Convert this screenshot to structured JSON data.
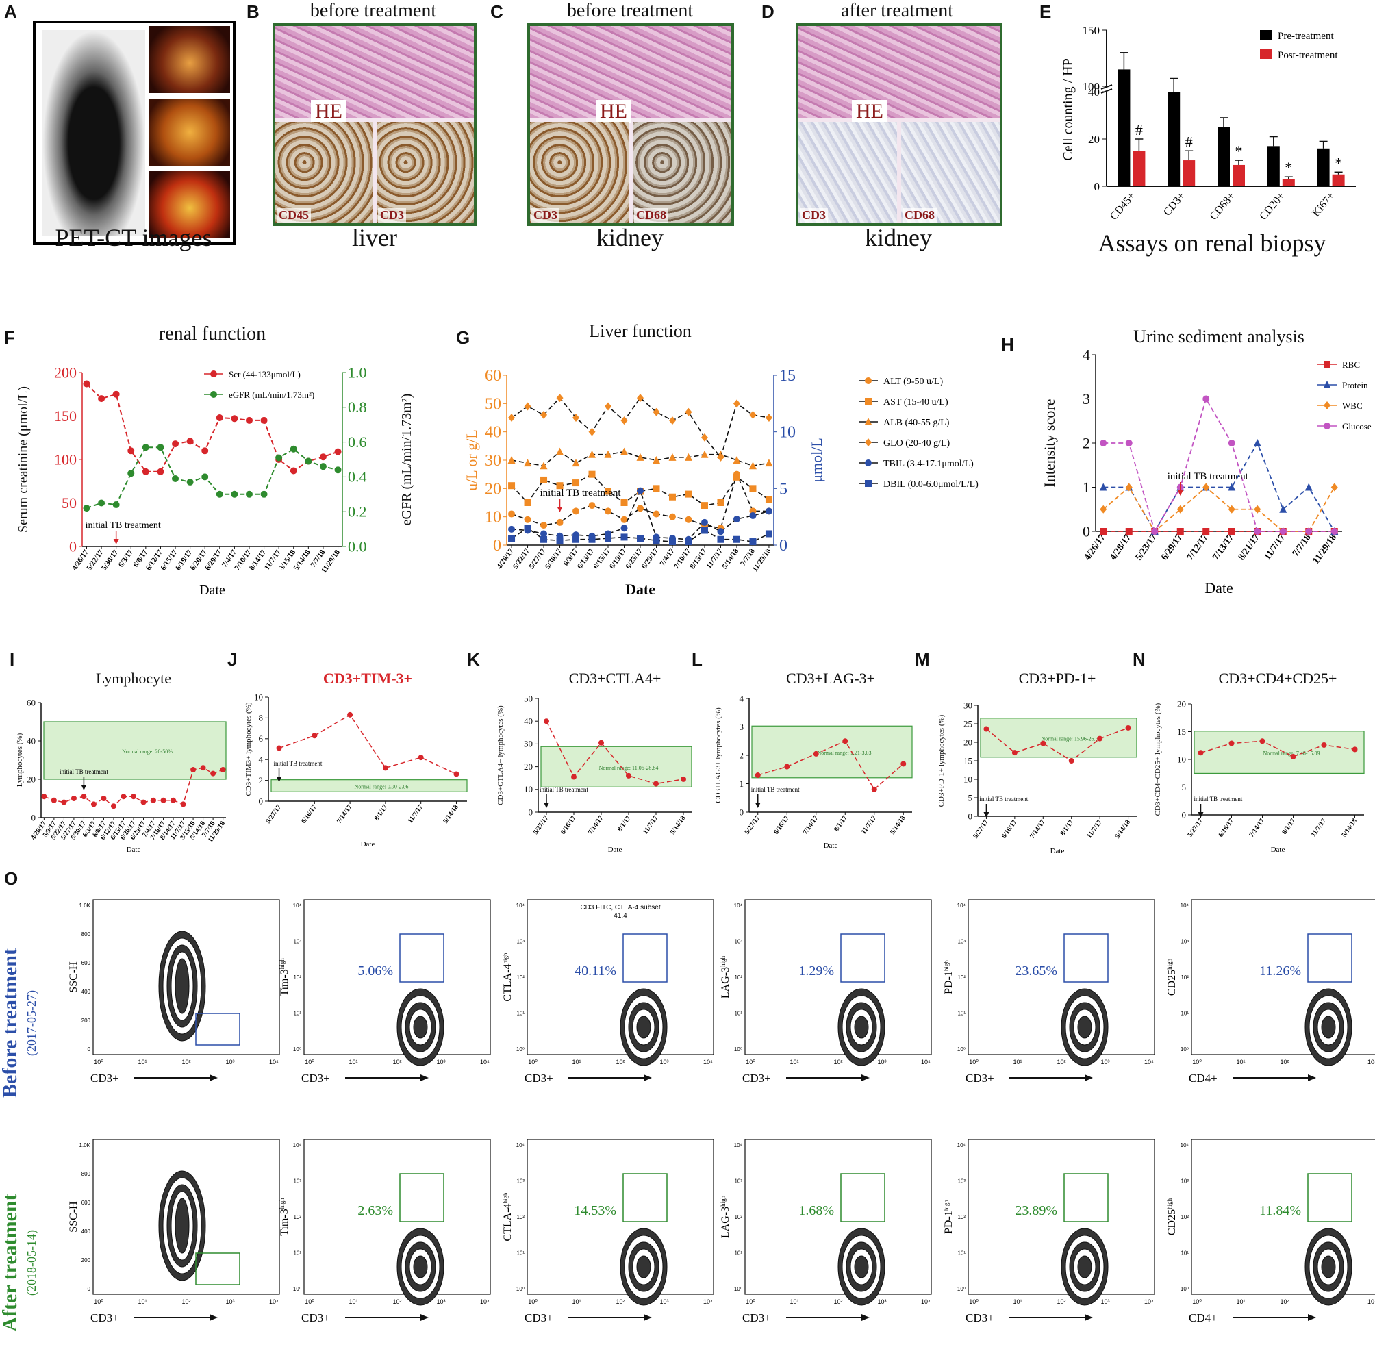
{
  "panels": {
    "A": {
      "letter": "A",
      "caption": "PET-CT images"
    },
    "B": {
      "letter": "B",
      "title": "before treatment",
      "caption": "liver",
      "he": "HE",
      "stains": [
        "CD45",
        "CD3"
      ]
    },
    "C": {
      "letter": "C",
      "title": "before treatment",
      "caption": "kidney",
      "he": "HE",
      "stains": [
        "CD3",
        "CD68"
      ]
    },
    "D": {
      "letter": "D",
      "title": "after treatment",
      "caption": "kidney",
      "he": "HE",
      "stains": [
        "CD3",
        "CD68"
      ]
    },
    "E": {
      "letter": "E",
      "caption": "Assays on renal biopsy"
    },
    "F": {
      "letter": "F"
    },
    "G": {
      "letter": "G"
    },
    "H": {
      "letter": "H"
    },
    "I": {
      "letter": "I"
    },
    "J": {
      "letter": "J"
    },
    "K": {
      "letter": "K"
    },
    "L": {
      "letter": "L"
    },
    "M": {
      "letter": "M"
    },
    "N": {
      "letter": "N"
    },
    "O": {
      "letter": "O"
    }
  },
  "colors": {
    "red": "#d7262b",
    "green": "#2e8b2e",
    "orange": "#f08a24",
    "blue": "#2b4ea8",
    "magenta": "#c254c2",
    "frame_green": "#2f6b2f"
  },
  "chart_data": [
    {
      "id": "E",
      "type": "bar",
      "title": "",
      "ylabel": "Cell counting / HP",
      "categories": [
        "CD45+",
        "CD3+",
        "CD68+",
        "CD20+",
        "Ki67+"
      ],
      "series": [
        {
          "name": "Pre-treatment",
          "color": "#000000",
          "values": [
            115,
            95,
            25,
            17,
            16
          ],
          "errors": [
            15,
            12,
            4,
            4,
            3
          ]
        },
        {
          "name": "Post-treatment",
          "color": "#d7262b",
          "values": [
            15,
            11,
            9,
            3,
            5
          ],
          "errors": [
            5,
            4,
            2,
            1,
            1
          ]
        }
      ],
      "annotations": [
        "#",
        "#",
        "*",
        "*",
        "*"
      ],
      "yticks": [
        "0",
        "20",
        "40",
        "100",
        "150"
      ],
      "axis_break": [
        40,
        100
      ],
      "ylim": [
        0,
        150
      ]
    },
    {
      "id": "F",
      "type": "line",
      "title": "renal function",
      "xlabel": "Date",
      "ylabel": "Serum creatinine (μmol/L)",
      "ylabel_right": "eGFR (mL/min/1.73m²)",
      "categories": [
        "4/26/17",
        "5/22/17",
        "5/30/17",
        "6/3/17",
        "6/8/17",
        "6/12/17",
        "6/15/17",
        "6/19/17",
        "6/20/17",
        "6/29/17",
        "7/4/17",
        "7/10/17",
        "8/14/17",
        "11/7/17",
        "3/15/18",
        "5/14/18",
        "7/7/18",
        "11/29/18"
      ],
      "series": [
        {
          "name": "Scr (44-133μmol/L)",
          "axis": "left",
          "color": "#d7262b",
          "values": [
            187,
            170,
            175,
            110,
            86,
            86,
            118,
            121,
            110,
            148,
            147,
            145,
            145,
            100,
            87,
            98,
            103,
            109
          ]
        },
        {
          "name": "eGFR (mL/min/1.73m²)",
          "axis": "right",
          "color": "#2e8b2e",
          "values": [
            0.22,
            0.25,
            0.24,
            0.42,
            0.57,
            0.57,
            0.39,
            0.37,
            0.4,
            0.3,
            0.3,
            0.3,
            0.3,
            0.51,
            0.56,
            0.49,
            0.46,
            0.44
          ]
        }
      ],
      "ylim": [
        0,
        200
      ],
      "ylim_right": [
        0,
        1.0
      ],
      "yticks": [
        "0",
        "50",
        "100",
        "150",
        "200"
      ],
      "yticks_right": [
        "0.0",
        "0.2",
        "0.4",
        "0.6",
        "0.8",
        "1.0"
      ],
      "annotation": "initial TB treatment",
      "annotation_index": 2
    },
    {
      "id": "G",
      "type": "line",
      "title": "Liver function",
      "xlabel": "Date",
      "ylabel": "u/L or g/L",
      "ylabel_right": "μmol/L",
      "categories": [
        "4/26/17",
        "5/22/17",
        "5/27/17",
        "5/30/17",
        "6/3/17",
        "6/13/17",
        "6/15/17",
        "6/19/17",
        "6/25/17",
        "6/29/17",
        "7/4/17",
        "7/10/17",
        "8/15/17",
        "11/7/17",
        "5/14/18",
        "7/7/18",
        "11/29/18"
      ],
      "series": [
        {
          "name": "ALT (9-50 u/L)",
          "marker": "circle",
          "axis": "left",
          "color": "#f08a24",
          "values": [
            11,
            9,
            7,
            8,
            12,
            14,
            12,
            9,
            13,
            11,
            10,
            9,
            7,
            6,
            25,
            12,
            12
          ]
        },
        {
          "name": "AST (15-40 u/L)",
          "marker": "square",
          "axis": "left",
          "color": "#f08a24",
          "values": [
            21,
            15,
            23,
            21,
            22,
            25,
            19,
            15,
            19,
            20,
            17,
            18,
            14,
            15,
            24,
            20,
            16
          ]
        },
        {
          "name": "ALB (40-55 g/L)",
          "marker": "triangle",
          "axis": "left",
          "color": "#f08a24",
          "values": [
            30,
            29,
            28,
            33,
            29,
            32,
            32,
            33,
            31,
            30,
            31,
            31,
            32,
            32,
            30,
            28,
            29
          ]
        },
        {
          "name": "GLO (20-40 g/L)",
          "marker": "diamond",
          "axis": "left",
          "color": "#f08a24",
          "values": [
            45,
            49,
            46,
            52,
            45,
            40,
            49,
            44,
            52,
            47,
            44,
            47,
            38,
            31,
            50,
            46,
            45
          ]
        },
        {
          "name": "TBIL (3.4-17.1μmol/L)",
          "marker": "circle",
          "axis": "right",
          "color": "#2b4ea8",
          "values": [
            1.4,
            1.3,
            1.0,
            0.8,
            0.9,
            0.8,
            1.0,
            1.5,
            4.8,
            0.7,
            0.6,
            0.5,
            2.0,
            1.2,
            2.3,
            2.6,
            3.0
          ]
        },
        {
          "name": "DBIL (0.0-6.0μmol/L/L)",
          "marker": "square",
          "axis": "right",
          "color": "#2b4ea8",
          "values": [
            0.6,
            1.5,
            0.5,
            0.4,
            0.5,
            0.5,
            0.6,
            0.7,
            0.6,
            0.4,
            0.3,
            0.3,
            1.3,
            0.5,
            0.5,
            0.3,
            1.0
          ]
        }
      ],
      "ylim": [
        0,
        60
      ],
      "ylim_right": [
        0,
        15
      ],
      "yticks": [
        "0",
        "10",
        "20",
        "30",
        "40",
        "50",
        "60"
      ],
      "yticks_right": [
        "0",
        "5",
        "10",
        "15"
      ],
      "annotation": "initial TB treatment",
      "annotation_index": 3
    },
    {
      "id": "H",
      "type": "line",
      "title": "Urine sediment analysis",
      "xlabel": "Date",
      "ylabel": "Intensity score",
      "categories": [
        "4/26/17",
        "4/28/17",
        "5/23/17",
        "6/29/17",
        "7/12/17",
        "7/13/17",
        "8/21/17",
        "11/7/17",
        "7/7/18",
        "11/29/18"
      ],
      "series": [
        {
          "name": "RBC",
          "marker": "square",
          "color": "#d7262b",
          "values": [
            0,
            0,
            0,
            0,
            0,
            0,
            0,
            0,
            0,
            0
          ]
        },
        {
          "name": "Protein",
          "marker": "triangle",
          "color": "#2b4ea8",
          "values": [
            1,
            1,
            0,
            1,
            1,
            1,
            2,
            0.5,
            1,
            0
          ]
        },
        {
          "name": "WBC",
          "marker": "diamond",
          "color": "#f08a24",
          "values": [
            0.5,
            1,
            0,
            0.5,
            1,
            0.5,
            0.5,
            0,
            0,
            1
          ]
        },
        {
          "name": "Glucose",
          "marker": "circle",
          "color": "#c254c2",
          "values": [
            2,
            2,
            0,
            1,
            3,
            2,
            0,
            0,
            0,
            0
          ]
        }
      ],
      "ylim": [
        0,
        4
      ],
      "yticks": [
        "0",
        "1",
        "2",
        "3",
        "4"
      ],
      "annotation": "initial TB treatment",
      "annotation_index": 3
    },
    {
      "id": "I",
      "type": "line",
      "title": "Lymphocyte",
      "xlabel": "Date",
      "ylabel": "Lymphocytes (%)",
      "categories": [
        "4/26/17",
        "5/9/17",
        "5/22/17",
        "5/27/17",
        "5/30/17",
        "6/3/17",
        "6/8/17",
        "6/12/17",
        "6/15/17",
        "6/20/17",
        "6/29/17",
        "7/4/17",
        "7/10/17",
        "8/14/17",
        "11/7/17",
        "3/15/18",
        "5/14/18",
        "7/7/18",
        "11/29/18"
      ],
      "series": [
        {
          "name": "Lymphocytes",
          "color": "#d7262b",
          "values": [
            11,
            9,
            8,
            10,
            11,
            7,
            10,
            6,
            11,
            11,
            8,
            9,
            9,
            9,
            7,
            25,
            26,
            23,
            25
          ]
        }
      ],
      "ylim": [
        0,
        60
      ],
      "yticks": [
        "0",
        "20",
        "40",
        "60"
      ],
      "normal_range": [
        20,
        50
      ],
      "normal_label": "Normal range: 20-50%",
      "annotation": "initial TB treatment",
      "annotation_index": 4
    },
    {
      "id": "J",
      "type": "line",
      "title": "CD3+TIM-3+",
      "title_color": "#d7262b",
      "xlabel": "Date",
      "ylabel": "CD3+TIM3+ lymphocytes (%)",
      "categories": [
        "5/27/17",
        "6/16/17",
        "7/14/17",
        "8/1/17",
        "11/7/17",
        "5/14/18"
      ],
      "series": [
        {
          "name": "CD3+TIM-3+",
          "color": "#d7262b",
          "values": [
            5.1,
            6.3,
            8.3,
            3.2,
            4.2,
            2.6
          ]
        }
      ],
      "ylim": [
        0,
        10
      ],
      "yticks": [
        "0",
        "2",
        "4",
        "6",
        "8",
        "10"
      ],
      "normal_range": [
        0.9,
        2.06
      ],
      "normal_label": "Normal range: 0.90-2.06",
      "annotation": "initial TB treatment",
      "annotation_index": 0
    },
    {
      "id": "K",
      "type": "line",
      "title": "CD3+CTLA4+",
      "xlabel": "Date",
      "ylabel": "CD3+CTLA4+ lymphocytes (%)",
      "categories": [
        "5/27/17",
        "6/16/17",
        "7/14/17",
        "8/1/17",
        "11/7/17",
        "5/14/18"
      ],
      "series": [
        {
          "name": "CD3+CTLA4+",
          "color": "#d7262b",
          "values": [
            40,
            15.5,
            30.5,
            16,
            12.5,
            14.5
          ]
        }
      ],
      "ylim": [
        0,
        50
      ],
      "yticks": [
        "0",
        "10",
        "20",
        "30",
        "40",
        "50"
      ],
      "normal_range": [
        11.06,
        28.84
      ],
      "normal_label": "Normal range: 11.06-28.84",
      "annotation": "initial TB treatment",
      "annotation_index": 0
    },
    {
      "id": "L",
      "type": "line",
      "title": "CD3+LAG-3+",
      "xlabel": "Date",
      "ylabel": "CD3+LAG3+ lymphocytes (%)",
      "categories": [
        "5/27/17",
        "6/16/17",
        "7/14/17",
        "8/1/17",
        "11/7/17",
        "5/14/18"
      ],
      "series": [
        {
          "name": "CD3+LAG-3+",
          "color": "#d7262b",
          "values": [
            1.3,
            1.6,
            2.05,
            2.5,
            0.8,
            1.7
          ]
        }
      ],
      "ylim": [
        0,
        4
      ],
      "yticks": [
        "0",
        "1",
        "2",
        "3",
        "4"
      ],
      "normal_range": [
        1.21,
        3.03
      ],
      "normal_label": "Normal range: 1.21-3.03",
      "annotation": "initial TB treatment",
      "annotation_index": 0
    },
    {
      "id": "M",
      "type": "line",
      "title": "CD3+PD-1+",
      "xlabel": "Date",
      "ylabel": "CD3+PD-1+ lymphocytes (%)",
      "categories": [
        "5/27/17",
        "6/16/17",
        "7/14/17",
        "8/1/17",
        "11/7/17",
        "5/14/18"
      ],
      "series": [
        {
          "name": "CD3+PD-1+",
          "color": "#d7262b",
          "values": [
            23.6,
            17.2,
            19.7,
            15,
            21,
            23.9
          ]
        }
      ],
      "ylim": [
        0,
        30
      ],
      "yticks": [
        "0",
        "5",
        "10",
        "15",
        "20",
        "25",
        "30"
      ],
      "normal_range": [
        15.96,
        26.52
      ],
      "normal_label": "Normal range: 15.96-26.52",
      "annotation": "initial TB treatment",
      "annotation_index": 0
    },
    {
      "id": "N",
      "type": "line",
      "title": "CD3+CD4+CD25+",
      "xlabel": "Date",
      "ylabel": "CD3+CD4+CD25+ lymphocytes (%)",
      "categories": [
        "5/27/17",
        "6/16/17",
        "7/14/17",
        "8/1/17",
        "11/7/17",
        "5/14/18"
      ],
      "series": [
        {
          "name": "CD3+CD4+CD25+",
          "color": "#d7262b",
          "values": [
            11.2,
            12.9,
            13.3,
            10.5,
            12.6,
            11.8
          ]
        }
      ],
      "ylim": [
        0,
        20
      ],
      "yticks": [
        "0",
        "5",
        "10",
        "15",
        "20"
      ],
      "normal_range": [
        7.48,
        15.09
      ],
      "normal_label": "Normal range: 7.48-15.09",
      "annotation": "initial TB treatment",
      "annotation_index": 0
    }
  ],
  "flow": {
    "rows": [
      {
        "label": "Before treatment",
        "date": "(2017-05-27)",
        "color": "#2b4ea8",
        "plots": [
          {
            "ylabel": "SSC-H",
            "xlabel": "CD3+",
            "pct": "",
            "gate_note": ""
          },
          {
            "ylabel": "Tim-3",
            "xlabel": "CD3+",
            "pct": "5.06%",
            "gate_note": ""
          },
          {
            "ylabel": "CTLA-4",
            "xlabel": "CD3+",
            "pct": "40.11%",
            "gate_note": "CD3 FITC, CTLA-4 subset",
            "gate_value": "41.4"
          },
          {
            "ylabel": "LAG-3",
            "xlabel": "CD3+",
            "pct": "1.29%",
            "gate_note": ""
          },
          {
            "ylabel": "PD-1",
            "xlabel": "CD3+",
            "pct": "23.65%",
            "gate_note": ""
          },
          {
            "ylabel": "CD25",
            "xlabel": "CD4+",
            "pct": "11.26%",
            "gate_note": ""
          }
        ]
      },
      {
        "label": "After treatment",
        "date": "(2018-05-14)",
        "color": "#2e8b2e",
        "plots": [
          {
            "ylabel": "SSC-H",
            "xlabel": "CD3+",
            "pct": "",
            "gate_note": ""
          },
          {
            "ylabel": "Tim-3",
            "xlabel": "CD3+",
            "pct": "2.63%",
            "gate_note": ""
          },
          {
            "ylabel": "CTLA-4",
            "xlabel": "CD3+",
            "pct": "14.53%",
            "gate_note": ""
          },
          {
            "ylabel": "LAG-3",
            "xlabel": "CD3+",
            "pct": "1.68%",
            "gate_note": ""
          },
          {
            "ylabel": "PD-1",
            "xlabel": "CD3+",
            "pct": "23.89%",
            "gate_note": ""
          },
          {
            "ylabel": "CD25",
            "xlabel": "CD4+",
            "pct": "11.84%",
            "gate_note": ""
          }
        ]
      }
    ],
    "ylabel_sup": "high",
    "ssc_ticks": [
      "0",
      "200",
      "400",
      "600",
      "800",
      "1.0K"
    ],
    "log_ticks": [
      "10⁰",
      "10¹",
      "10²",
      "10³",
      "10⁴"
    ]
  }
}
